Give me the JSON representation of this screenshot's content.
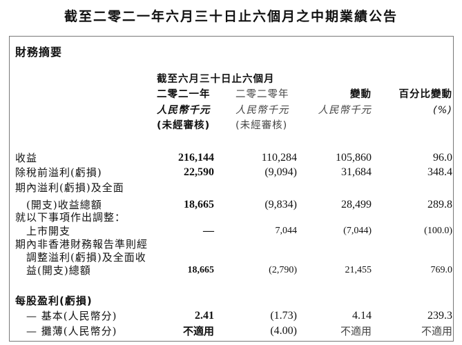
{
  "title": "截至二零二一年六月三十日止六個月之中期業績公告",
  "section_title": "財務摘要",
  "header": {
    "period": "截至六月三十日止六個月",
    "col1": {
      "year": "二零二一年",
      "unit": "人民幣千元",
      "note": "(未經審核)"
    },
    "col2": {
      "year": "二零二零年",
      "unit": "人民幣千元",
      "note": "(未經審核)"
    },
    "col3": {
      "label": "變動",
      "unit": "人民幣千元"
    },
    "col4": {
      "label": "百分比變動",
      "unit": "(%)"
    }
  },
  "rows": [
    {
      "label": "收益",
      "values": [
        "216,144",
        "110,284",
        "105,860",
        "96.0"
      ]
    },
    {
      "label": "除稅前溢利(虧損)",
      "values": [
        "22,590",
        "(9,094)",
        "31,684",
        "348.4"
      ]
    },
    {
      "label": "期內溢利(虧損)及全面",
      "label2": "(開支)收益總額",
      "values": [
        "18,665",
        "(9,834)",
        "28,499",
        "289.8"
      ]
    },
    {
      "label": "就以下事項作出調整：",
      "label2": "上市開支",
      "values": [
        "—",
        "7,044",
        "(7,044)",
        "(100.0)"
      ]
    },
    {
      "label": "期內非香港財務報告準則經",
      "label2": "調整溢利(虧損)及全面收",
      "label3": "益(開支)總額",
      "values": [
        "18,665",
        "(2,790)",
        "21,455",
        "769.0"
      ]
    }
  ],
  "eps": {
    "title": "每股盈利(虧損)",
    "rows": [
      {
        "label": "— 基本(人民幣分)",
        "values": [
          "2.41",
          "(1.73)",
          "4.14",
          "239.3"
        ]
      },
      {
        "label": "— 攤薄(人民幣分)",
        "values": [
          "不適用",
          "(4.00)",
          "不適用",
          "不適用"
        ]
      }
    ]
  }
}
